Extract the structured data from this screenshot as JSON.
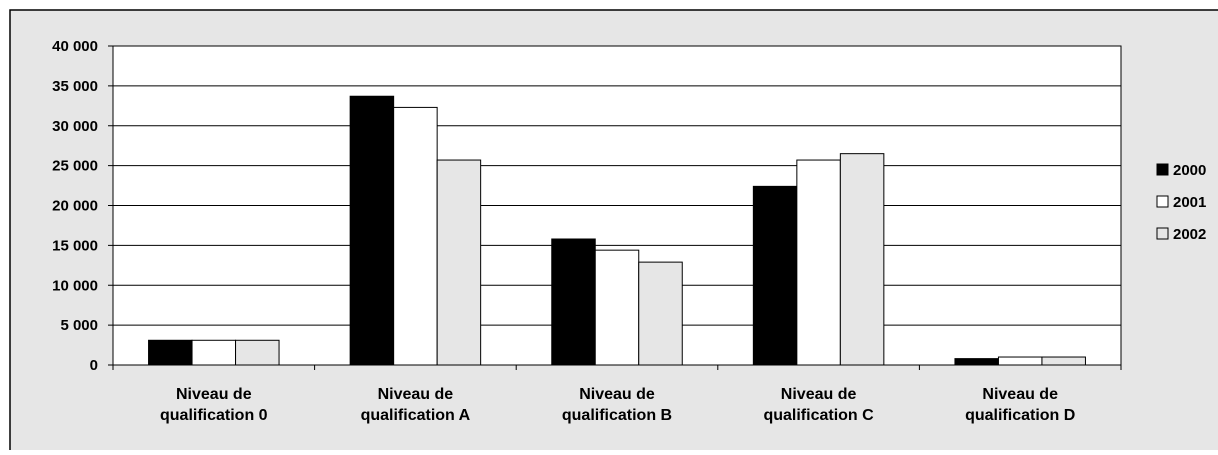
{
  "chart_data": {
    "type": "bar",
    "title": "",
    "xlabel": "",
    "ylabel": "",
    "ylim": [
      0,
      40000
    ],
    "yticks": [
      0,
      5000,
      10000,
      15000,
      20000,
      25000,
      30000,
      35000,
      40000
    ],
    "ytick_labels": [
      "0",
      "5 000",
      "10 000",
      "15 000",
      "20 000",
      "25 000",
      "30 000",
      "35 000",
      "40 000"
    ],
    "grid": true,
    "legend_position": "right",
    "categories": [
      [
        "Niveau de",
        "qualification 0"
      ],
      [
        "Niveau de",
        "qualification A"
      ],
      [
        "Niveau de",
        "qualification B"
      ],
      [
        "Niveau de",
        "qualification C"
      ],
      [
        "Niveau de",
        "qualification D"
      ]
    ],
    "series": [
      {
        "name": "2000",
        "color": "#000000",
        "values": [
          3100,
          33700,
          15800,
          22400,
          800
        ]
      },
      {
        "name": "2001",
        "color": "#ffffff",
        "values": [
          3100,
          32300,
          14400,
          25700,
          1000
        ]
      },
      {
        "name": "2002",
        "color": "#e6e6e6",
        "values": [
          3100,
          25700,
          12900,
          26500,
          1000
        ]
      }
    ]
  },
  "colors": {
    "chart_area_background": "#e6e6e6",
    "plot_background": "#ffffff",
    "frame": "#000000"
  }
}
